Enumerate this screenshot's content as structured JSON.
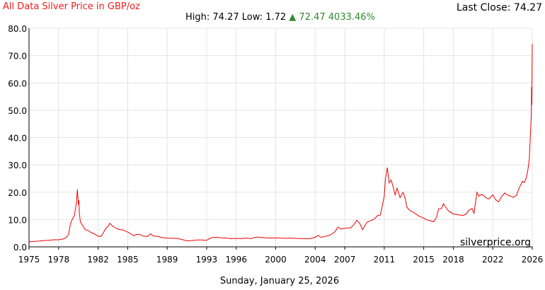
{
  "header": {
    "title": "All Data Silver Price in GBP/oz",
    "last_close_label": "Last Close:",
    "last_close_value": "74.27",
    "high_label": "High:",
    "high_value": "74.27",
    "low_label": "Low:",
    "low_value": "1.72",
    "change_arrow": "▲",
    "change_value": "72.47",
    "change_percent": "4033.46%"
  },
  "footer": {
    "date": "Sunday, January 25, 2026"
  },
  "watermark": "silverprice.org",
  "colors": {
    "line": "#ee0000",
    "title": "#ee1c1c",
    "change": "#2f8a2f",
    "grid": "#e4e4e4",
    "axis": "#000000"
  },
  "chart_data": {
    "type": "line",
    "title": "All Data Silver Price in GBP/oz",
    "xlabel": "",
    "ylabel": "",
    "xlim": [
      1975,
      2026
    ],
    "ylim": [
      0,
      80
    ],
    "grid": true,
    "y_ticks": [
      "0.0",
      "10.0",
      "20.0",
      "30.0",
      "40.0",
      "50.0",
      "60.0",
      "70.0",
      "80.0"
    ],
    "x_ticks": [
      "1975",
      "1978",
      "1982",
      "1985",
      "1989",
      "1993",
      "1996",
      "2000",
      "2004",
      "2007",
      "2011",
      "2015",
      "2018",
      "2022",
      "2026"
    ],
    "series": [
      {
        "x": [
          1975.0,
          1975.5,
          1976.0,
          1976.5,
          1977.0,
          1977.5,
          1978.0,
          1978.5,
          1978.8,
          1979.0,
          1979.2,
          1979.4,
          1979.6,
          1979.8,
          1979.9,
          1980.0,
          1980.05,
          1980.1,
          1980.2,
          1980.4,
          1980.7,
          1981.0,
          1981.3,
          1981.6,
          1982.0,
          1982.3,
          1982.5,
          1982.8,
          1983.0,
          1983.2,
          1983.5,
          1984.0,
          1984.5,
          1985.0,
          1985.3,
          1985.6,
          1985.9,
          1986.2,
          1986.6,
          1987.0,
          1987.3,
          1987.6,
          1988.0,
          1988.5,
          1989.0,
          1989.5,
          1990.0,
          1990.5,
          1991.0,
          1991.5,
          1992.0,
          1992.5,
          1993.0,
          1993.5,
          1994.0,
          1994.5,
          1995.0,
          1995.5,
          1996.0,
          1996.5,
          1997.0,
          1997.5,
          1998.0,
          1998.5,
          1999.0,
          1999.5,
          2000.0,
          2000.5,
          2001.0,
          2001.5,
          2002.0,
          2002.5,
          2003.0,
          2003.5,
          2004.0,
          2004.3,
          2004.6,
          2005.0,
          2005.5,
          2006.0,
          2006.3,
          2006.6,
          2007.0,
          2007.3,
          2007.6,
          2008.0,
          2008.2,
          2008.5,
          2008.8,
          2009.0,
          2009.3,
          2009.6,
          2010.0,
          2010.3,
          2010.6,
          2010.8,
          2011.0,
          2011.1,
          2011.3,
          2011.5,
          2011.7,
          2011.9,
          2012.1,
          2012.3,
          2012.6,
          2012.9,
          2013.1,
          2013.3,
          2013.6,
          2014.0,
          2014.5,
          2015.0,
          2015.3,
          2015.6,
          2016.0,
          2016.3,
          2016.5,
          2016.8,
          2017.0,
          2017.5,
          2018.0,
          2018.5,
          2019.0,
          2019.3,
          2019.6,
          2019.9,
          2020.1,
          2020.2,
          2020.4,
          2020.6,
          2020.8,
          2021.0,
          2021.3,
          2021.6,
          2022.0,
          2022.3,
          2022.6,
          2022.9,
          2023.2,
          2023.5,
          2023.8,
          2024.1,
          2024.4,
          2024.7,
          2025.0,
          2025.2,
          2025.4,
          2025.55,
          2025.7,
          2025.8,
          2025.85,
          2025.9,
          2025.93,
          2025.96,
          2025.98,
          2026.0
        ],
        "y": [
          1.8,
          2.0,
          2.1,
          2.3,
          2.4,
          2.6,
          2.6,
          2.9,
          3.5,
          4.5,
          8.5,
          10.2,
          11.5,
          16.0,
          21.0,
          15.5,
          17.0,
          12.5,
          9.2,
          8.0,
          6.3,
          6.0,
          5.2,
          4.8,
          3.9,
          3.8,
          5.0,
          6.8,
          7.5,
          8.6,
          7.5,
          6.5,
          6.2,
          5.4,
          4.8,
          4.1,
          4.5,
          4.6,
          3.9,
          3.8,
          4.8,
          4.0,
          3.8,
          3.4,
          3.2,
          3.1,
          3.1,
          2.7,
          2.2,
          2.3,
          2.5,
          2.5,
          2.4,
          3.4,
          3.5,
          3.3,
          3.2,
          3.0,
          3.1,
          3.0,
          3.2,
          3.0,
          3.6,
          3.5,
          3.3,
          3.2,
          3.3,
          3.2,
          3.1,
          3.2,
          3.1,
          3.0,
          3.0,
          3.0,
          3.5,
          4.2,
          3.5,
          3.8,
          4.3,
          5.5,
          7.2,
          6.5,
          6.8,
          6.9,
          6.9,
          8.5,
          9.7,
          8.7,
          6.3,
          7.6,
          9.2,
          9.5,
          10.2,
          11.4,
          11.6,
          15.0,
          18.5,
          24.2,
          29.0,
          23.4,
          24.5,
          22.0,
          19.0,
          21.5,
          18.0,
          20.0,
          18.0,
          14.5,
          13.3,
          12.5,
          11.3,
          10.5,
          9.9,
          9.6,
          9.2,
          10.8,
          13.9,
          14.0,
          15.8,
          13.2,
          12.0,
          11.7,
          11.5,
          12.0,
          13.5,
          14.0,
          12.2,
          15.0,
          20.0,
          18.5,
          19.1,
          19.0,
          18.0,
          17.5,
          19.0,
          17.2,
          16.5,
          18.5,
          19.7,
          19.0,
          18.5,
          18.1,
          18.9,
          21.8,
          24.0,
          23.5,
          25.3,
          28.0,
          32.0,
          40.0,
          44.0,
          48.0,
          58.5,
          52.0,
          63.0,
          74.27
        ]
      }
    ]
  }
}
